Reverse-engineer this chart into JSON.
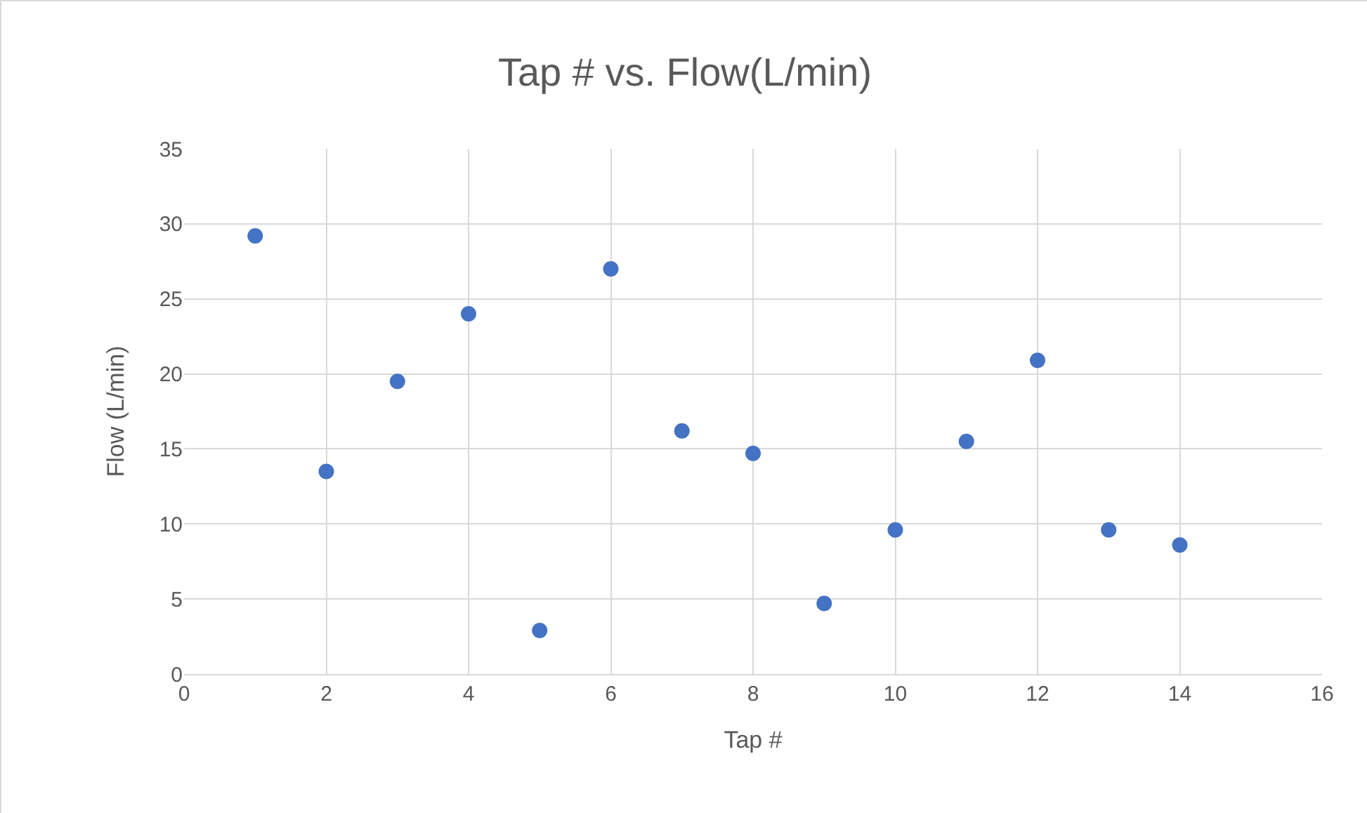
{
  "chart_data": {
    "type": "scatter",
    "title": "Tap # vs. Flow(L/min)",
    "xlabel": "Tap #",
    "ylabel": "Flow (L/min)",
    "x": [
      1,
      2,
      3,
      4,
      5,
      6,
      7,
      8,
      9,
      10,
      11,
      12,
      13,
      14
    ],
    "values": [
      29.2,
      13.5,
      19.5,
      24,
      2.9,
      27,
      16.2,
      14.7,
      4.7,
      9.6,
      15.5,
      20.9,
      9.6,
      8.6
    ],
    "color": "#4472c4",
    "marker": "circle",
    "xlim": [
      0,
      16
    ],
    "xticks": [
      0,
      2,
      4,
      6,
      8,
      10,
      12,
      14,
      16
    ],
    "ylim": [
      0,
      35
    ],
    "yticks": [
      0,
      5,
      10,
      15,
      20,
      25,
      30,
      35
    ],
    "grid": true,
    "legend": false
  }
}
